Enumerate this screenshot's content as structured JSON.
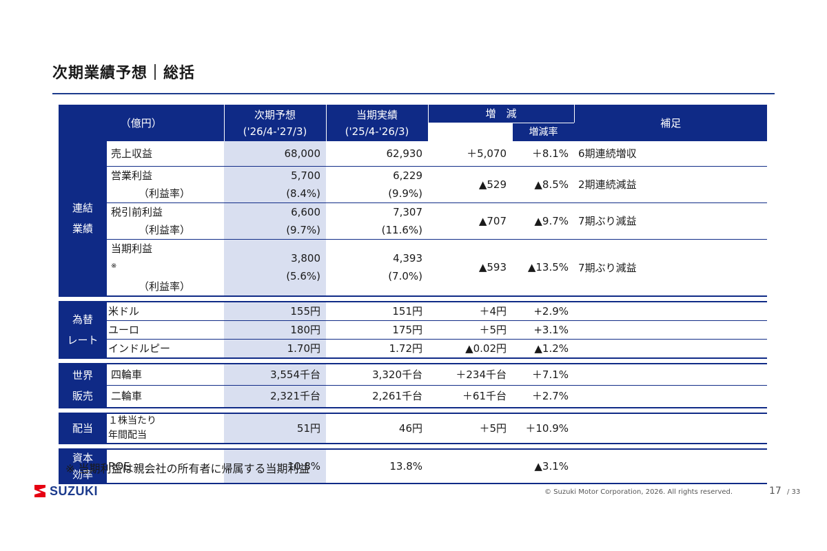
{
  "title": "次期業績予想｜総括",
  "header": {
    "unit": "（億円）",
    "forecast": "次期予想",
    "forecast_period": "('26/4-'27/3)",
    "actual": "当期実績",
    "actual_period": "('25/4-'26/3)",
    "change": "増　減",
    "change_rate": "増減率",
    "notes": "補足"
  },
  "consolidated": {
    "category": [
      "連結",
      "業績"
    ],
    "rows": [
      {
        "label": "売上収益",
        "forecast": "68,000",
        "actual": "62,930",
        "change": "＋5,070",
        "rate": "＋8.1%",
        "note": "6期連続増収"
      },
      {
        "label": "営業利益",
        "sub": "（利益率）",
        "forecast": "5,700",
        "forecast_sub": "(8.4%)",
        "actual": "6,229",
        "actual_sub": "(9.9%)",
        "change": "▲529",
        "rate": "▲8.5%",
        "note": "2期連続減益"
      },
      {
        "label": "税引前利益",
        "sub": "（利益率）",
        "forecast": "6,600",
        "forecast_sub": "(9.7%)",
        "actual": "7,307",
        "actual_sub": "(11.6%)",
        "change": "▲707",
        "rate": "▲9.7%",
        "note": "7期ぶり減益"
      },
      {
        "label": "当期利益",
        "mark": "※",
        "sub": "（利益率）",
        "forecast": "3,800",
        "forecast_sub": "(5.6%)",
        "actual": "4,393",
        "actual_sub": "(7.0%)",
        "change": "▲593",
        "rate": "▲13.5%",
        "note": "7期ぶり減益"
      }
    ]
  },
  "fx": {
    "category": [
      "為替",
      "レート"
    ],
    "rows": [
      {
        "label": "米ドル",
        "forecast": "155円",
        "actual": "151円",
        "change": "＋4円",
        "rate": "+2.9%"
      },
      {
        "label": "ユーロ",
        "forecast": "180円",
        "actual": "175円",
        "change": "＋5円",
        "rate": "+3.1%"
      },
      {
        "label": "インドルピー",
        "forecast": "1.70円",
        "actual": "1.72円",
        "change": "▲0.02円",
        "rate": "▲1.2%"
      }
    ]
  },
  "sales": {
    "category": [
      "世界",
      "販売"
    ],
    "rows": [
      {
        "label": "四輪車",
        "forecast": "3,554千台",
        "actual": "3,320千台",
        "change": "＋234千台",
        "rate": "＋7.1%"
      },
      {
        "label": "二輪車",
        "forecast": "2,321千台",
        "actual": "2,261千台",
        "change": "＋61千台",
        "rate": "＋2.7%"
      }
    ]
  },
  "dividend": {
    "category": "配当",
    "label_line1": "１株当たり",
    "label_line2": "年間配当",
    "forecast": "51円",
    "actual": "46円",
    "change": "＋5円",
    "rate": "＋10.9%"
  },
  "capital": {
    "category": [
      "資本",
      "効率"
    ],
    "label": "ROE",
    "forecast": "10.8%",
    "actual": "13.8%",
    "rate": "▲3.1%"
  },
  "footnote": "※ 当期利益は親会社の所有者に帰属する当期利益",
  "footer": {
    "logo": "SUZUKI",
    "copyright": "© Suzuki Motor Corporation, 2026. All rights reserved.",
    "page": "17",
    "total": "/ 33"
  },
  "colors": {
    "header": "#0f2a86",
    "highlight": "#d9dff0",
    "logo": "#1b3a8c"
  }
}
